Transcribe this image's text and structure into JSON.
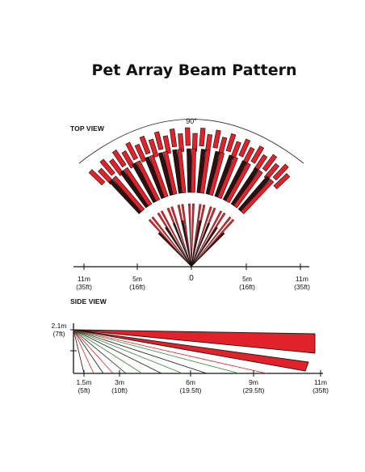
{
  "title": "Pet Array Beam Pattern",
  "top_view": {
    "heading": "TOP VIEW",
    "angle": "90°",
    "scale_labels": [
      {
        "top": "11m",
        "bottom": "(35ft)"
      },
      {
        "top": "5m",
        "bottom": "(16ft)"
      },
      {
        "top": "0",
        "bottom": ""
      },
      {
        "top": "5m",
        "bottom": "(16ft)"
      },
      {
        "top": "11m",
        "bottom": "(35ft)"
      }
    ]
  },
  "side_view": {
    "heading": "SIDE VIEW",
    "height_label": {
      "top": "2.1m",
      "bottom": "(7ft)"
    },
    "scale_labels": [
      {
        "top": "1.5m",
        "bottom": "(5ft)"
      },
      {
        "top": "3m",
        "bottom": "(10ft)"
      },
      {
        "top": "6m",
        "bottom": "(19.5ft)"
      },
      {
        "top": "9m",
        "bottom": "(29.5ft)"
      },
      {
        "top": "11m",
        "bottom": "(35ft)"
      }
    ]
  },
  "colors": {
    "beam_red": "#e2222a",
    "beam_dark": "#2b1212",
    "ink": "#111111",
    "ray_green": "#3a8a3a"
  }
}
